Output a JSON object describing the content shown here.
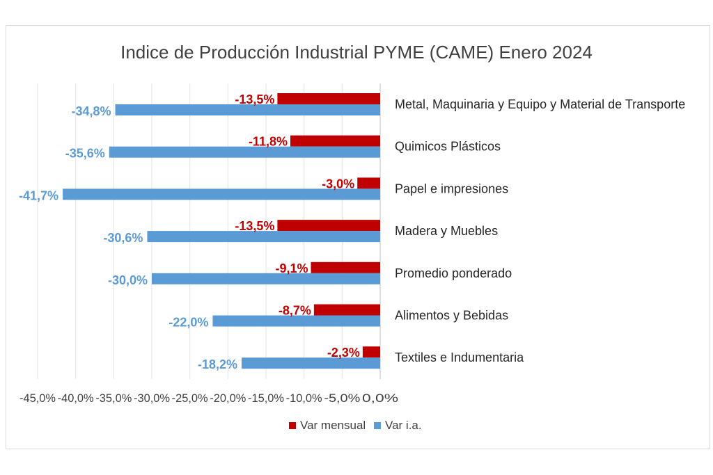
{
  "chart_data": {
    "type": "bar",
    "orientation": "horizontal",
    "title": "Indice de Producción Industrial PYME (CAME) Enero 2024",
    "categories": [
      "Metal, Maquinaria y Equipo y Material de Transporte",
      "Quimicos Plásticos",
      "Papel e impresiones",
      "Madera y Muebles",
      "Promedio ponderado",
      "Alimentos y Bebidas",
      "Textiles e Indumentaria"
    ],
    "series": [
      {
        "name": "Var mensual",
        "color": "#c00000",
        "values": [
          -13.5,
          -11.8,
          -3.0,
          -13.5,
          -9.1,
          -8.7,
          -2.3
        ],
        "labels": [
          "-13,5%",
          "-11,8%",
          "-3,0%",
          "-13,5%",
          "-9,1%",
          "-8,7%",
          "-2,3%"
        ]
      },
      {
        "name": "Var i.a.",
        "color": "#5b9bd5",
        "values": [
          -34.8,
          -35.6,
          -41.7,
          -30.6,
          -30.0,
          -22.0,
          -18.2
        ],
        "labels": [
          "-34,8%",
          "-35,6%",
          "-41,7%",
          "-30,6%",
          "-30,0%",
          "-22,0%",
          "-18,2%"
        ]
      }
    ],
    "xlim": [
      -45,
      0
    ],
    "xticks": [
      -45,
      -40,
      -35,
      -30,
      -25,
      -20,
      -15,
      -10,
      -5,
      0
    ],
    "xtick_labels": [
      "-45,0%",
      "-40,0%",
      "-35,0%",
      "-30,0%",
      "-25,0%",
      "-20,0%",
      "-15,0%",
      "-10,0%",
      "-5,0%",
      "0,0%"
    ],
    "grid": "vertical",
    "legend": "bottom-right"
  }
}
